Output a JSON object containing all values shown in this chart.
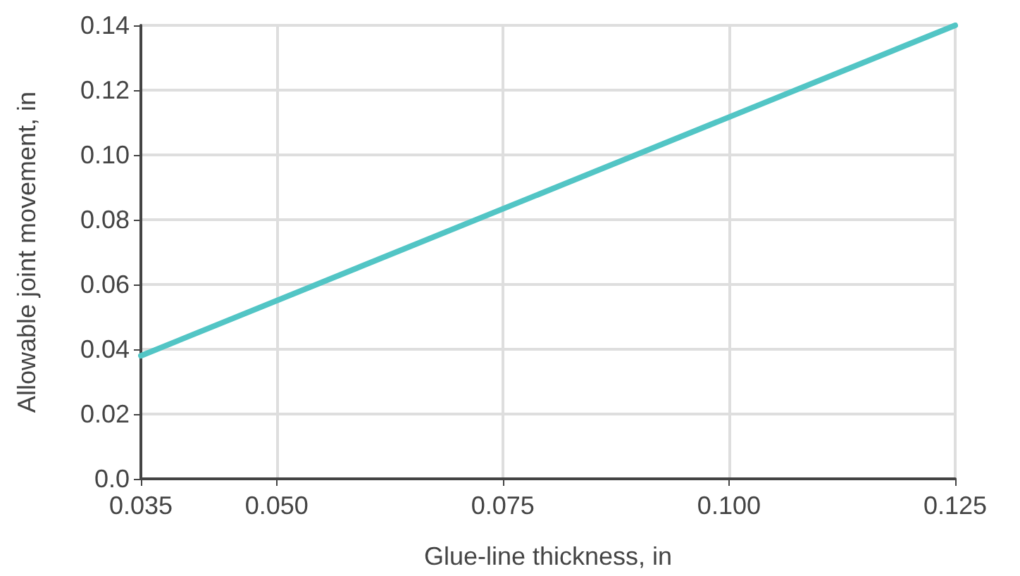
{
  "chart_data": {
    "type": "line",
    "xlabel": "Glue-line thickness, in",
    "ylabel": "Allowable joint movement, in",
    "x": [
      0.035,
      0.125
    ],
    "series": [
      {
        "color": "#52c5c5",
        "values": [
          0.038,
          0.14
        ]
      }
    ],
    "xlim": [
      0.035,
      0.125
    ],
    "xticks": [
      {
        "value": 0.035,
        "label": "0.035"
      },
      {
        "value": 0.05,
        "label": "0.050"
      },
      {
        "value": 0.075,
        "label": "0.075"
      },
      {
        "value": 0.1,
        "label": "0.100"
      },
      {
        "value": 0.125,
        "label": "0.125"
      }
    ],
    "ylim": [
      0,
      0.14
    ],
    "yticks": [
      {
        "value": 0,
        "label": "0.0"
      },
      {
        "value": 0.02,
        "label": "0.02"
      },
      {
        "value": 0.04,
        "label": "0.04"
      },
      {
        "value": 0.06,
        "label": "0.06"
      },
      {
        "value": 0.08,
        "label": "0.08"
      },
      {
        "value": 0.1,
        "label": "0.10"
      },
      {
        "value": 0.12,
        "label": "0.12"
      },
      {
        "value": 0.14,
        "label": "0.14"
      }
    ],
    "grid": true,
    "marker": "none",
    "line_style": "solid"
  }
}
